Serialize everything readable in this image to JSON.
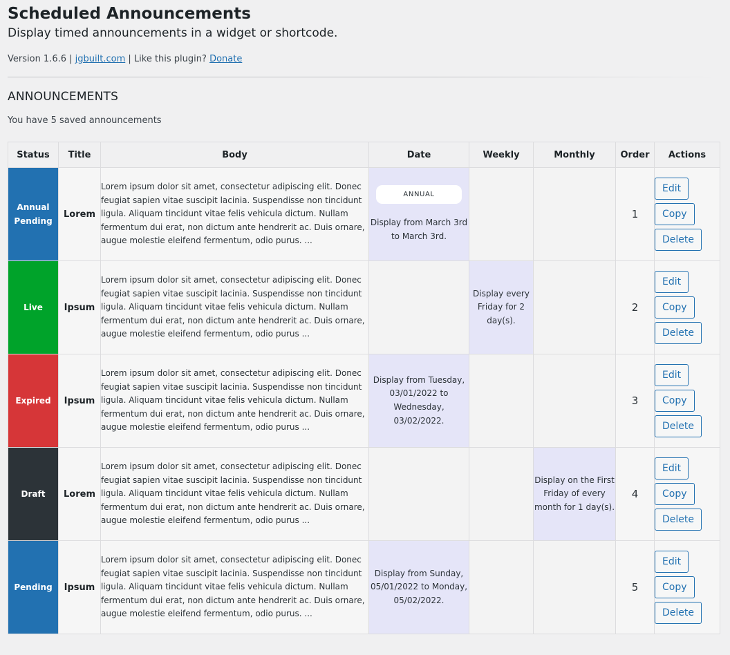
{
  "page": {
    "title": "Scheduled Announcements",
    "subtitle": "Display timed announcements in a widget or shortcode.",
    "version_text": "Version 1.6.6 |",
    "site_link": "jgbuilt.com",
    "like_text": "| Like this plugin?",
    "donate_link": "Donate"
  },
  "section": {
    "title": "ANNOUNCEMENTS",
    "count_text": "You have 5 saved announcements"
  },
  "table": {
    "headers": {
      "status": "Status",
      "title": "Title",
      "body": "Body",
      "date": "Date",
      "weekly": "Weekly",
      "monthly": "Monthly",
      "order": "Order",
      "actions": "Actions"
    },
    "action_labels": {
      "edit": "Edit",
      "copy": "Copy",
      "delete": "Delete"
    },
    "rows": [
      {
        "status": "Annual Pending",
        "status_color": "#2271b1",
        "title": "Lorem",
        "body": "Lorem ipsum dolor sit amet, consectetur adipiscing elit. Donec feugiat sapien vitae suscipit lacinia. Suspendisse non tincidunt ligula. Aliquam tincidunt vitae felis vehicula dictum. Nullam fermentum dui erat, non dictum ante hendrerit ac. Duis ornare, augue molestie eleifend fermentum, odio purus. ...",
        "date_badge": "ANNUAL",
        "date": "Display from March 3rd to March 3rd.",
        "weekly": "",
        "monthly": "",
        "active_column": "date",
        "order": "1"
      },
      {
        "status": "Live",
        "status_color": "#00a32a",
        "title": "Ipsum",
        "body": "Lorem ipsum dolor sit amet, consectetur adipiscing elit. Donec feugiat sapien vitae suscipit lacinia. Suspendisse non tincidunt ligula. Aliquam tincidunt vitae felis vehicula dictum. Nullam fermentum dui erat, non dictum ante hendrerit ac. Duis ornare, augue molestie eleifend fermentum, odio purus ...",
        "date_badge": "",
        "date": "",
        "weekly": "Display every Friday for 2 day(s).",
        "monthly": "",
        "active_column": "weekly",
        "order": "2"
      },
      {
        "status": "Expired",
        "status_color": "#d63638",
        "title": "Ipsum",
        "body": "Lorem ipsum dolor sit amet, consectetur adipiscing elit. Donec feugiat sapien vitae suscipit lacinia. Suspendisse non tincidunt ligula. Aliquam tincidunt vitae felis vehicula dictum. Nullam fermentum dui erat, non dictum ante hendrerit ac. Duis ornare, augue molestie eleifend fermentum, odio purus ...",
        "date_badge": "",
        "date": "Display from Tuesday, 03/01/2022 to Wednesday, 03/02/2022.",
        "weekly": "",
        "monthly": "",
        "active_column": "date",
        "order": "3"
      },
      {
        "status": "Draft",
        "status_color": "#2c3338",
        "title": "Lorem",
        "body": "Lorem ipsum dolor sit amet, consectetur adipiscing elit. Donec feugiat sapien vitae suscipit lacinia. Suspendisse non tincidunt ligula. Aliquam tincidunt vitae felis vehicula dictum. Nullam fermentum dui erat, non dictum ante hendrerit ac. Duis ornare, augue molestie eleifend fermentum, odio purus ...",
        "date_badge": "",
        "date": "",
        "weekly": "",
        "monthly": "Display on the First Friday of every month for 1 day(s).",
        "active_column": "monthly",
        "order": "4"
      },
      {
        "status": "Pending",
        "status_color": "#2271b1",
        "title": "Ipsum",
        "body": "Lorem ipsum dolor sit amet, consectetur adipiscing elit. Donec feugiat sapien vitae suscipit lacinia. Suspendisse non tincidunt ligula. Aliquam tincidunt vitae felis vehicula dictum. Nullam fermentum dui erat, non dictum ante hendrerit ac. Duis ornare, augue molestie eleifend fermentum, odio purus. ...",
        "date_badge": "",
        "date": "Display from Sunday, 05/01/2022 to Monday, 05/02/2022.",
        "weekly": "",
        "monthly": "",
        "active_column": "date",
        "order": "5"
      }
    ]
  }
}
